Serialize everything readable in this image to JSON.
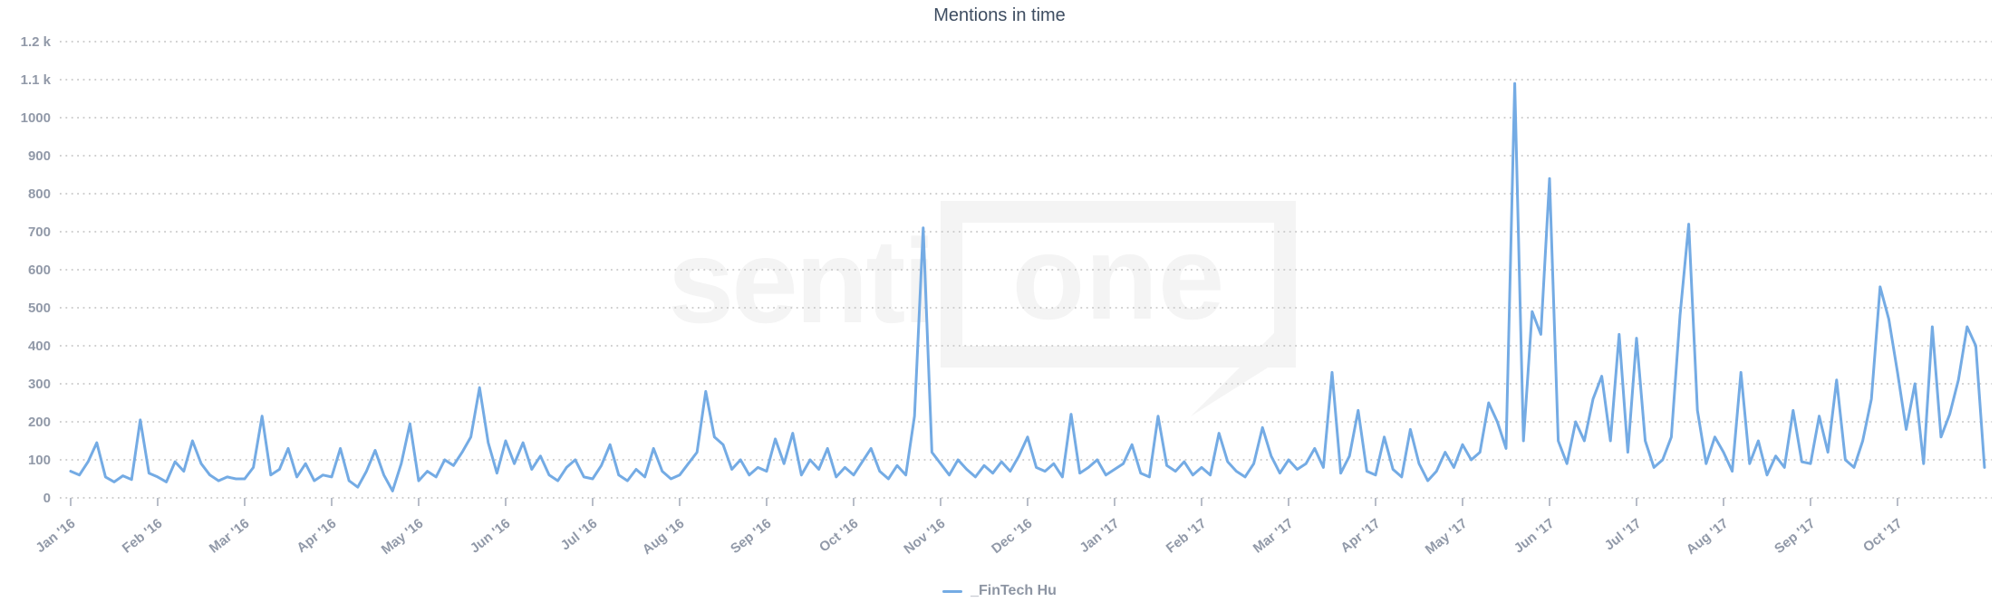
{
  "title": "Mentions in time",
  "watermark": {
    "left_text": "senti",
    "boxed_text": "one"
  },
  "legend": {
    "series_label": "_FinTech Hu"
  },
  "colors": {
    "series": "#74abe4",
    "grid": "#c9c9c9",
    "axis_label": "#9199a8",
    "title": "#3e4d61",
    "legend_text": "#8d95a3",
    "watermark": "#f4f4f4"
  },
  "chart_data": {
    "type": "line",
    "title": "Mentions in time",
    "xlabel": "",
    "ylabel": "",
    "ylim": [
      0,
      1200
    ],
    "grid": "dotted-horizontal",
    "legend_position": "bottom-center",
    "y_tick_labels": [
      "0",
      "100",
      "200",
      "300",
      "400",
      "500",
      "600",
      "700",
      "800",
      "900",
      "1000",
      "1.1 k",
      "1.2 k"
    ],
    "x_tick_labels": [
      "Jan '16",
      "Feb '16",
      "Mar '16",
      "Apr '16",
      "May '16",
      "Jun '16",
      "Jul '16",
      "Aug '16",
      "Sep '16",
      "Oct '16",
      "Nov '16",
      "Dec '16",
      "Jan '17",
      "Feb '17",
      "Mar '17",
      "Apr '17",
      "May '17",
      "Jun '17",
      "Jul '17",
      "Aug '17",
      "Sep '17",
      "Oct '17"
    ],
    "points_per_month": 10,
    "sampling_note": "values estimated from plot at ~3-day intervals, Jan 2016 - late Oct 2017",
    "series": [
      {
        "name": "_FinTech Hu",
        "color": "#74abe4",
        "values": [
          70,
          60,
          95,
          145,
          55,
          42,
          58,
          48,
          205,
          65,
          55,
          42,
          95,
          70,
          150,
          90,
          60,
          45,
          55,
          50,
          50,
          80,
          215,
          60,
          75,
          130,
          55,
          90,
          45,
          60,
          55,
          130,
          45,
          28,
          70,
          125,
          60,
          18,
          90,
          195,
          45,
          70,
          55,
          100,
          85,
          120,
          160,
          290,
          145,
          65,
          150,
          90,
          145,
          75,
          110,
          60,
          45,
          80,
          100,
          55,
          50,
          85,
          140,
          60,
          45,
          75,
          55,
          130,
          70,
          50,
          60,
          90,
          120,
          280,
          160,
          140,
          75,
          100,
          60,
          80,
          70,
          155,
          90,
          170,
          60,
          100,
          75,
          130,
          55,
          80,
          60,
          95,
          130,
          70,
          50,
          85,
          60,
          215,
          710,
          120,
          90,
          60,
          100,
          75,
          55,
          85,
          65,
          95,
          70,
          110,
          160,
          80,
          70,
          90,
          55,
          220,
          65,
          80,
          100,
          60,
          75,
          90,
          140,
          65,
          55,
          215,
          85,
          70,
          95,
          60,
          80,
          60,
          170,
          95,
          70,
          55,
          90,
          185,
          110,
          65,
          100,
          75,
          90,
          130,
          80,
          330,
          65,
          110,
          230,
          70,
          60,
          160,
          75,
          55,
          180,
          90,
          45,
          70,
          120,
          80,
          140,
          100,
          120,
          250,
          200,
          130,
          1090,
          150,
          490,
          430,
          840,
          150,
          90,
          200,
          150,
          260,
          320,
          150,
          430,
          120,
          420,
          150,
          80,
          100,
          160,
          480,
          720,
          230,
          90,
          160,
          120,
          70,
          330,
          90,
          150,
          60,
          110,
          80,
          230,
          95,
          90,
          215,
          120,
          310,
          100,
          80,
          150,
          260,
          555,
          470,
          330,
          180,
          300,
          90,
          450,
          160,
          220,
          310,
          450,
          400,
          80
        ]
      }
    ]
  }
}
